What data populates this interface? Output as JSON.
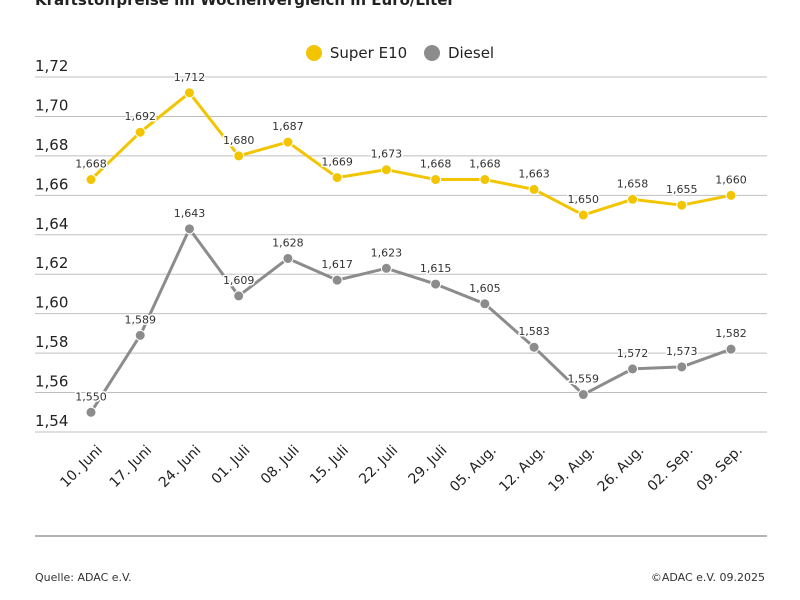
{
  "header": {
    "title": "Kraftstoffpreise im Wochenvergleich in Euro/Liter"
  },
  "colors": {
    "super": "#F2C500",
    "diesel": "#8C8C8C",
    "grid": "#BFBFBF",
    "text": "#222222"
  },
  "footer": {
    "source": "Quelle: ADAC e.V.",
    "copyright": "©ADAC e.V. 09.2025"
  },
  "chart_data": {
    "type": "line",
    "title": "Kraftstoffpreise im Wochenvergleich in Euro/Liter",
    "xlabel": "",
    "ylabel": "",
    "categories": [
      "10. Juni",
      "17. Juni",
      "24. Juni",
      "01. Juli",
      "08. Juli",
      "15. Juli",
      "22. Juli",
      "29. Juli",
      "05. Aug.",
      "12. Aug.",
      "19. Aug.",
      "26. Aug.",
      "02. Sep.",
      "09. Sep."
    ],
    "series": [
      {
        "name": "Super E10",
        "color": "#F2C500",
        "values": [
          1.668,
          1.692,
          1.712,
          1.68,
          1.687,
          1.669,
          1.673,
          1.668,
          1.668,
          1.663,
          1.65,
          1.658,
          1.655,
          1.66
        ],
        "labels": [
          "1,668",
          "1,692",
          "1,712",
          "1,680",
          "1,687",
          "1,669",
          "1,673",
          "1,668",
          "1,668",
          "1,663",
          "1,650",
          "1,658",
          "1,655",
          "1,660"
        ]
      },
      {
        "name": "Diesel",
        "color": "#8C8C8C",
        "values": [
          1.55,
          1.589,
          1.643,
          1.609,
          1.628,
          1.617,
          1.623,
          1.615,
          1.605,
          1.583,
          1.559,
          1.572,
          1.573,
          1.582
        ],
        "labels": [
          "1,550",
          "1,589",
          "1,643",
          "1,609",
          "1,628",
          "1,617",
          "1,623",
          "1,615",
          "1,605",
          "1,583",
          "1,559",
          "1,572",
          "1,573",
          "1,582"
        ]
      }
    ],
    "ylim": [
      1.54,
      1.72
    ],
    "yticks": [
      1.54,
      1.56,
      1.58,
      1.6,
      1.62,
      1.64,
      1.66,
      1.68,
      1.7,
      1.72
    ],
    "ytick_labels": [
      "1,54",
      "1,56",
      "1,58",
      "1,60",
      "1,62",
      "1,64",
      "1,66",
      "1,68",
      "1,70",
      "1,72"
    ],
    "grid": true,
    "legend": "top-center"
  }
}
